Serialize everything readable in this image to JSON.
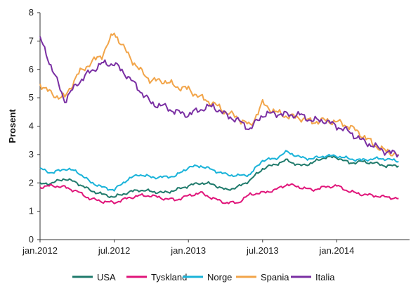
{
  "chart_data": {
    "type": "line",
    "title": "",
    "xlabel": "",
    "ylabel": "Prosent",
    "ylim": [
      0,
      8
    ],
    "yticks": [
      "0",
      "1",
      "2",
      "3",
      "4",
      "5",
      "6",
      "7",
      "8"
    ],
    "xticks": [
      {
        "label": "jan.2012",
        "x": "2012-01"
      },
      {
        "label": "jul.2012",
        "x": "2012-07"
      },
      {
        "label": "jan.2013",
        "x": "2013-01"
      },
      {
        "label": "jul.2013",
        "x": "2013-07"
      },
      {
        "label": "jan.2014",
        "x": "2014-01"
      }
    ],
    "x": [
      "2012-01",
      "2012-02",
      "2012-03",
      "2012-04",
      "2012-05",
      "2012-06",
      "2012-07",
      "2012-08",
      "2012-09",
      "2012-10",
      "2012-11",
      "2012-12",
      "2013-01",
      "2013-02",
      "2013-03",
      "2013-04",
      "2013-05",
      "2013-06",
      "2013-07",
      "2013-08",
      "2013-09",
      "2013-10",
      "2013-11",
      "2013-12",
      "2014-01",
      "2014-02",
      "2014-03",
      "2014-04",
      "2014-05",
      "2014-06"
    ],
    "grid": false,
    "legend": "bottom",
    "series": [
      {
        "name": "USA",
        "color": "#1f7a6b",
        "values": [
          1.95,
          2.0,
          2.15,
          2.0,
          1.75,
          1.6,
          1.5,
          1.65,
          1.75,
          1.7,
          1.65,
          1.75,
          1.9,
          2.0,
          1.95,
          1.75,
          1.85,
          2.1,
          2.5,
          2.65,
          2.8,
          2.6,
          2.7,
          2.9,
          2.9,
          2.7,
          2.75,
          2.7,
          2.6,
          2.6
        ]
      },
      {
        "name": "Tyskland",
        "color": "#e0157a",
        "values": [
          1.85,
          1.9,
          1.85,
          1.7,
          1.45,
          1.35,
          1.3,
          1.45,
          1.55,
          1.55,
          1.45,
          1.4,
          1.55,
          1.65,
          1.45,
          1.3,
          1.3,
          1.6,
          1.65,
          1.75,
          1.95,
          1.85,
          1.75,
          1.85,
          1.9,
          1.7,
          1.6,
          1.55,
          1.5,
          1.45
        ]
      },
      {
        "name": "Norge",
        "color": "#1ab3d9",
        "values": [
          2.5,
          2.35,
          2.5,
          2.4,
          2.05,
          1.85,
          1.75,
          2.1,
          2.3,
          2.2,
          2.2,
          2.25,
          2.55,
          2.6,
          2.45,
          2.3,
          2.25,
          2.3,
          2.8,
          2.85,
          3.1,
          2.9,
          2.85,
          2.95,
          2.95,
          2.85,
          2.8,
          2.85,
          2.85,
          2.75
        ]
      },
      {
        "name": "Spania",
        "color": "#f2a54a",
        "values": [
          5.5,
          5.1,
          5.0,
          5.8,
          6.2,
          6.5,
          7.3,
          6.6,
          6.0,
          5.6,
          5.6,
          5.4,
          5.3,
          5.0,
          4.8,
          4.5,
          4.3,
          4.0,
          4.8,
          4.5,
          4.35,
          4.3,
          4.15,
          4.2,
          4.15,
          4.0,
          3.7,
          3.35,
          3.1,
          3.0
        ]
      },
      {
        "name": "Italia",
        "color": "#7a2fa3",
        "values": [
          7.1,
          6.0,
          4.9,
          5.5,
          5.9,
          6.2,
          6.2,
          5.8,
          5.3,
          4.8,
          4.7,
          4.5,
          4.4,
          4.6,
          4.7,
          4.4,
          4.2,
          3.9,
          4.4,
          4.45,
          4.4,
          4.4,
          4.2,
          4.2,
          4.0,
          3.8,
          3.5,
          3.3,
          3.1,
          3.0
        ]
      }
    ]
  }
}
